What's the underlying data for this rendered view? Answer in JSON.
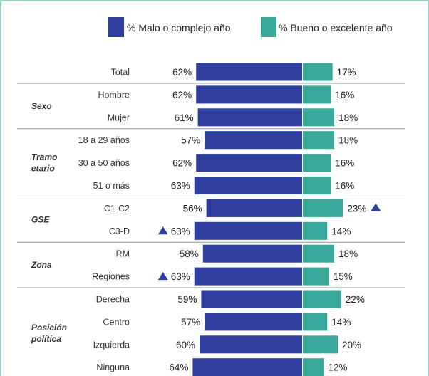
{
  "chart_data": {
    "type": "bar",
    "layout": "diverging",
    "legend": {
      "placement": "top",
      "items": [
        {
          "key": "malo",
          "label": "% Malo o complejo año",
          "color": "#2e3d9e"
        },
        {
          "key": "bueno",
          "label": "% Bueno o excelente año",
          "color": "#3aa89a"
        }
      ]
    },
    "rows": [
      {
        "group": "",
        "label": "Total",
        "malo": 62,
        "bueno": 17,
        "malo_text": "62%",
        "bueno_text": "17%",
        "malo_marker": false,
        "bueno_marker": false
      },
      {
        "group": "Sexo",
        "label": "Hombre",
        "malo": 62,
        "bueno": 16,
        "malo_text": "62%",
        "bueno_text": "16%",
        "malo_marker": false,
        "bueno_marker": false
      },
      {
        "group": "",
        "label": "Mujer",
        "malo": 61,
        "bueno": 18,
        "malo_text": "61%",
        "bueno_text": "18%",
        "malo_marker": false,
        "bueno_marker": false
      },
      {
        "group": "",
        "label": "18 a 29 años",
        "malo": 57,
        "bueno": 18,
        "malo_text": "57%",
        "bueno_text": "18%",
        "malo_marker": false,
        "bueno_marker": false
      },
      {
        "group": "Tramo etario",
        "label": "30 a 50 años",
        "malo": 62,
        "bueno": 16,
        "malo_text": "62%",
        "bueno_text": "16%",
        "malo_marker": false,
        "bueno_marker": false
      },
      {
        "group": "",
        "label": "51 o más",
        "malo": 63,
        "bueno": 16,
        "malo_text": "63%",
        "bueno_text": "16%",
        "malo_marker": false,
        "bueno_marker": false
      },
      {
        "group": "GSE",
        "label": "C1-C2",
        "malo": 56,
        "bueno": 23,
        "malo_text": "56%",
        "bueno_text": "23%",
        "malo_marker": false,
        "bueno_marker": true
      },
      {
        "group": "",
        "label": "C3-D",
        "malo": 63,
        "bueno": 14,
        "malo_text": "63%",
        "bueno_text": "14%",
        "malo_marker": true,
        "bueno_marker": false
      },
      {
        "group": "Zona",
        "label": "RM",
        "malo": 58,
        "bueno": 18,
        "malo_text": "58%",
        "bueno_text": "18%",
        "malo_marker": false,
        "bueno_marker": false
      },
      {
        "group": "",
        "label": "Regiones",
        "malo": 63,
        "bueno": 15,
        "malo_text": "63%",
        "bueno_text": "15%",
        "malo_marker": true,
        "bueno_marker": false
      },
      {
        "group": "Posición política",
        "label": "Derecha",
        "malo": 59,
        "bueno": 22,
        "malo_text": "59%",
        "bueno_text": "22%",
        "malo_marker": false,
        "bueno_marker": false
      },
      {
        "group": "",
        "label": "Centro",
        "malo": 57,
        "bueno": 14,
        "malo_text": "57%",
        "bueno_text": "14%",
        "malo_marker": false,
        "bueno_marker": false
      },
      {
        "group": "",
        "label": "Izquierda",
        "malo": 60,
        "bueno": 20,
        "malo_text": "60%",
        "bueno_text": "20%",
        "malo_marker": false,
        "bueno_marker": false
      },
      {
        "group": "",
        "label": "Ninguna",
        "malo": 64,
        "bueno": 12,
        "malo_text": "64%",
        "bueno_text": "12%",
        "malo_marker": false,
        "bueno_marker": false
      }
    ],
    "marker_color": "#2e3d9e"
  }
}
